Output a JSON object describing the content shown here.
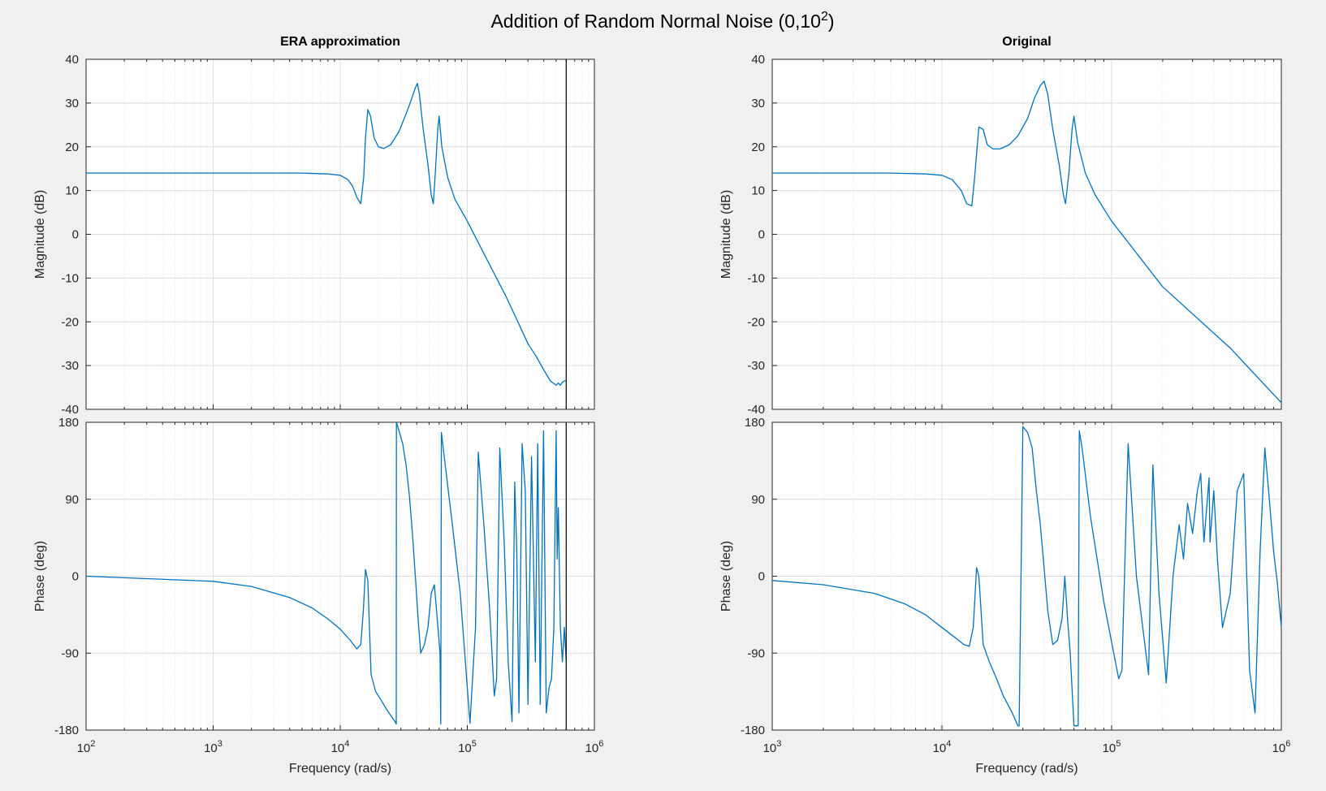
{
  "figure": {
    "title": "Addition of Random Normal Noise (0,10",
    "title_sup": "2",
    "title_end": ")",
    "colors": {
      "background": "#f0f0f0",
      "axes_bg": "#ffffff",
      "line": "#0072bd",
      "grid": "#dcdcdc",
      "axis": "#262626"
    }
  },
  "chart_data": [
    {
      "type": "line",
      "panel": "ERA approximation - magnitude",
      "title": "ERA approximation",
      "xscale": "log",
      "xlim": [
        100,
        1000000
      ],
      "ylim": [
        -40,
        40
      ],
      "xlabel": "",
      "ylabel": "Magnitude (dB)",
      "yticks": [
        40,
        30,
        20,
        10,
        0,
        -10,
        -20,
        -30,
        -40
      ],
      "ytick_labels": [
        "40",
        "30",
        "20",
        "10",
        "0",
        "-10",
        "-20",
        "-30",
        "-40"
      ],
      "vline_x": 600000,
      "x": [
        100,
        1000,
        5000,
        8000,
        10000,
        11500,
        12500,
        13500,
        14500,
        15300,
        15800,
        16500,
        17300,
        18500,
        20000,
        22000,
        25000,
        29000,
        33000,
        36000,
        39000,
        40500,
        42000,
        45000,
        49000,
        52000,
        54000,
        56000,
        58500,
        60000,
        63000,
        70000,
        80000,
        100000,
        150000,
        200000,
        250000,
        300000,
        350000,
        400000,
        450000,
        500000,
        520000,
        540000,
        560000,
        580000,
        600000
      ],
      "y": [
        14,
        14,
        14,
        13.8,
        13.5,
        12.5,
        11,
        8.5,
        7,
        13,
        22,
        28.5,
        27,
        22,
        20,
        19.6,
        20.5,
        23.5,
        27.5,
        30.5,
        33.5,
        34.5,
        32,
        24,
        16,
        9,
        7,
        14,
        24,
        27,
        20,
        13,
        8,
        3,
        -7,
        -14,
        -20,
        -25,
        -28,
        -31,
        -33.5,
        -34.5,
        -34,
        -34.5,
        -33.8,
        -33.5,
        -33.5
      ]
    },
    {
      "type": "line",
      "panel": "ERA approximation - phase",
      "title": "",
      "xscale": "log",
      "xlim": [
        100,
        1000000
      ],
      "ylim": [
        -180,
        180
      ],
      "xlabel": "Frequency  (rad/s)",
      "ylabel": "Phase (deg)",
      "yticks": [
        180,
        90,
        0,
        -90,
        -180
      ],
      "ytick_labels": [
        "180",
        "90",
        "0",
        "-90",
        "-180"
      ],
      "xticks": [
        100,
        1000,
        10000,
        100000,
        1000000
      ],
      "xtick_base": "10",
      "xtick_exponents": [
        "2",
        "3",
        "4",
        "5",
        "6"
      ],
      "vline_x": 600000,
      "x": [
        100,
        1000,
        2000,
        4000,
        6000,
        8000,
        10000,
        12000,
        13500,
        14500,
        15200,
        15800,
        16500,
        17500,
        19000,
        21000,
        23000,
        25000,
        27000,
        27600,
        27700,
        29000,
        31000,
        33000,
        35000,
        37000,
        39000,
        41000,
        43000,
        46000,
        49000,
        52000,
        55000,
        58000,
        61000,
        61800,
        62500,
        67000,
        75000,
        88000,
        105000,
        116000,
        122000,
        135000,
        150000,
        163000,
        170000,
        180000,
        195000,
        210000,
        225000,
        236000,
        245000,
        255000,
        270000,
        286000,
        300000,
        320000,
        343000,
        358000,
        375000,
        398000,
        418000,
        440000,
        460000,
        480000,
        500000,
        510000,
        520000,
        540000,
        560000,
        580000,
        600000
      ],
      "y": [
        0,
        -6,
        -12,
        -25,
        -37,
        -50,
        -62,
        -75,
        -85,
        -80,
        -40,
        8,
        -5,
        -115,
        -135,
        -145,
        -155,
        -163,
        -170,
        -173,
        180,
        170,
        155,
        130,
        95,
        50,
        0,
        -50,
        -90,
        -80,
        -60,
        -20,
        -10,
        -50,
        -90,
        -173,
        168,
        130,
        70,
        -20,
        -172,
        -60,
        145,
        60,
        -40,
        -140,
        -120,
        150,
        40,
        -100,
        -170,
        110,
        30,
        -160,
        155,
        100,
        -150,
        140,
        -100,
        155,
        -150,
        170,
        -160,
        -130,
        -120,
        -60,
        170,
        20,
        80,
        -60,
        -100,
        -60,
        -100
      ]
    },
    {
      "type": "line",
      "panel": "Original - magnitude",
      "title": "Original",
      "xscale": "log",
      "xlim": [
        1000,
        1000000
      ],
      "ylim": [
        -40,
        40
      ],
      "xlabel": "",
      "ylabel": "Magnitude (dB)",
      "yticks": [
        40,
        30,
        20,
        10,
        0,
        -10,
        -20,
        -30,
        -40
      ],
      "ytick_labels": [
        "40",
        "30",
        "20",
        "10",
        "0",
        "-10",
        "-20",
        "-30",
        "-40"
      ],
      "x": [
        1000,
        5000,
        8000,
        10000,
        11500,
        13000,
        14000,
        15000,
        15500,
        16500,
        17500,
        18500,
        20000,
        22000,
        25000,
        28000,
        32000,
        35000,
        38000,
        40000,
        42000,
        45000,
        49000,
        52000,
        53500,
        56000,
        58500,
        60000,
        63000,
        70000,
        80000,
        100000,
        200000,
        500000,
        1000000
      ],
      "y": [
        14,
        14,
        13.8,
        13.5,
        12.5,
        10,
        7,
        6.5,
        12,
        24.5,
        24,
        20.5,
        19.5,
        19.5,
        20.5,
        22.5,
        26.5,
        31,
        34,
        35,
        32,
        24,
        16,
        9,
        7,
        14,
        24,
        27,
        21,
        14,
        9,
        3,
        -12,
        -26,
        -38.5
      ]
    },
    {
      "type": "line",
      "panel": "Original - phase",
      "title": "",
      "xscale": "log",
      "xlim": [
        1000,
        1000000
      ],
      "ylim": [
        -180,
        180
      ],
      "xlabel": "Frequency  (rad/s)",
      "ylabel": "Phase (deg)",
      "yticks": [
        180,
        90,
        0,
        -90,
        -180
      ],
      "ytick_labels": [
        "180",
        "90",
        "0",
        "-90",
        "-180"
      ],
      "xticks": [
        1000,
        10000,
        100000,
        1000000
      ],
      "xtick_base": "10",
      "xtick_exponents": [
        "3",
        "4",
        "5",
        "6"
      ],
      "x": [
        1000,
        2000,
        4000,
        6000,
        8000,
        10000,
        12000,
        13500,
        14500,
        15300,
        16000,
        16500,
        17500,
        19000,
        21000,
        23000,
        26000,
        28000,
        28500,
        30000,
        32000,
        34000,
        36000,
        38000,
        40000,
        42000,
        45000,
        48000,
        51000,
        53000,
        55000,
        57000,
        60000,
        63500,
        64500,
        67000,
        75000,
        90000,
        110000,
        115000,
        125000,
        140000,
        165000,
        175000,
        190000,
        210000,
        230000,
        250000,
        265000,
        280000,
        300000,
        320000,
        335000,
        350000,
        375000,
        380000,
        400000,
        420000,
        450000,
        500000,
        550000,
        600000,
        650000,
        700000,
        750000,
        800000,
        850000,
        900000,
        950000,
        1000000
      ],
      "y": [
        -5,
        -10,
        -20,
        -32,
        -45,
        -60,
        -72,
        -80,
        -82,
        -60,
        10,
        0,
        -80,
        -100,
        -120,
        -140,
        -160,
        -175,
        -175,
        175,
        168,
        150,
        100,
        60,
        10,
        -40,
        -80,
        -75,
        -50,
        0,
        -50,
        -90,
        -175,
        -175,
        170,
        150,
        70,
        -30,
        -120,
        -110,
        155,
        0,
        -115,
        130,
        -20,
        -125,
        0,
        60,
        20,
        85,
        50,
        100,
        120,
        40,
        115,
        40,
        100,
        20,
        -60,
        -20,
        100,
        120,
        -110,
        -160,
        30,
        150,
        90,
        30,
        -10,
        -60
      ]
    }
  ]
}
